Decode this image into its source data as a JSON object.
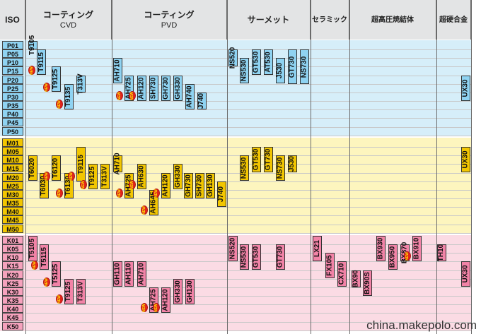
{
  "header": {
    "iso": "ISO",
    "columns": [
      {
        "key": "cvd",
        "line1": "コーティング",
        "line2": "CVD"
      },
      {
        "key": "pvd",
        "line1": "コーティング",
        "line2": "PVD"
      },
      {
        "key": "cermet",
        "line1": "サーメット",
        "line2": ""
      },
      {
        "key": "ceramic",
        "line1": "セラミック",
        "line2": ""
      },
      {
        "key": "cbn",
        "line1": "超高圧焼結体",
        "line2": ""
      },
      {
        "key": "carbide",
        "line1": "超硬合金",
        "line2": ""
      }
    ]
  },
  "bands": [
    {
      "name": "P",
      "color": "#d6eef9",
      "labelColor": "#8fd3f2",
      "rows": [
        "P01",
        "P05",
        "P10",
        "P15",
        "P20",
        "P25",
        "P30",
        "P35",
        "P40",
        "P45",
        "P50"
      ]
    },
    {
      "name": "M",
      "color": "#fdf5be",
      "labelColor": "#f2c600",
      "rows": [
        "M01",
        "M05",
        "M10",
        "M15",
        "M20",
        "M25",
        "M30",
        "M35",
        "M40",
        "M45",
        "M50"
      ]
    },
    {
      "name": "K",
      "color": "#fbdbe4",
      "labelColor": "#f6a2bd",
      "rows": [
        "K01",
        "K05",
        "K10",
        "K15",
        "K20",
        "K25",
        "K30",
        "K35",
        "K40",
        "K45",
        "K50"
      ]
    }
  ],
  "grade_colors": {
    "P": "#8fd3f2",
    "M": "#f2c600",
    "K": "#f283a7"
  },
  "new_badge": "NEW",
  "grades": [
    {
      "band": "P",
      "name": "T9105",
      "start": 0,
      "end": 1,
      "new": false
    },
    {
      "band": "P",
      "name": "T9115",
      "start": 1,
      "end": 4,
      "new": true
    },
    {
      "band": "P",
      "name": "T9125",
      "start": 3,
      "end": 6,
      "new": true
    },
    {
      "band": "P",
      "name": "T9135",
      "start": 5,
      "end": 8,
      "new": true
    },
    {
      "band": "P",
      "name": "T313V",
      "start": 4,
      "end": 6,
      "new": false
    },
    {
      "band": "P",
      "name": "AH710",
      "start": 2,
      "end": 5,
      "new": false
    },
    {
      "band": "P",
      "name": "AH725",
      "start": 4,
      "end": 7,
      "new": true
    },
    {
      "band": "P",
      "name": "AH120",
      "start": 4,
      "end": 7,
      "new": true
    },
    {
      "band": "P",
      "name": "SH730",
      "start": 4,
      "end": 7,
      "new": false
    },
    {
      "band": "P",
      "name": "GH730",
      "start": 4,
      "end": 7,
      "new": false
    },
    {
      "band": "P",
      "name": "GH330",
      "start": 4,
      "end": 7,
      "new": false
    },
    {
      "band": "P",
      "name": "AH740",
      "start": 5,
      "end": 8,
      "new": false
    },
    {
      "band": "P",
      "name": "J740",
      "start": 6,
      "end": 8,
      "new": false
    },
    {
      "band": "P",
      "name": "NS520",
      "start": 1,
      "end": 3,
      "new": false
    },
    {
      "band": "P",
      "name": "NS530",
      "start": 2,
      "end": 5,
      "new": false
    },
    {
      "band": "P",
      "name": "GT530",
      "start": 1,
      "end": 4,
      "new": false
    },
    {
      "band": "P",
      "name": "AT530",
      "start": 1,
      "end": 4,
      "new": false
    },
    {
      "band": "P",
      "name": "J530",
      "start": 2,
      "end": 5,
      "new": false
    },
    {
      "band": "P",
      "name": "GT730",
      "start": 1,
      "end": 5,
      "new": false
    },
    {
      "band": "P",
      "name": "NS730",
      "start": 1,
      "end": 5,
      "new": false
    },
    {
      "band": "P",
      "name": "UX30",
      "start": 4,
      "end": 7,
      "new": false
    },
    {
      "band": "M",
      "name": "T6020",
      "start": 2,
      "end": 5,
      "new": false
    },
    {
      "band": "M",
      "name": "T6030",
      "start": 4,
      "end": 7,
      "new": false
    },
    {
      "band": "M",
      "name": "T6120",
      "start": 2,
      "end": 5,
      "new": true
    },
    {
      "band": "M",
      "name": "T6130",
      "start": 4,
      "end": 7,
      "new": true
    },
    {
      "band": "M",
      "name": "T9115",
      "start": 1,
      "end": 5,
      "new": true
    },
    {
      "band": "M",
      "name": "T9125",
      "start": 3,
      "end": 6,
      "new": true
    },
    {
      "band": "M",
      "name": "T313V",
      "start": 3,
      "end": 6,
      "new": false
    },
    {
      "band": "M",
      "name": "AH710",
      "start": 2,
      "end": 4,
      "new": false
    },
    {
      "band": "M",
      "name": "AH725",
      "start": 4,
      "end": 7,
      "new": true
    },
    {
      "band": "M",
      "name": "AH630",
      "start": 3,
      "end": 6,
      "new": true
    },
    {
      "band": "M",
      "name": "AH645",
      "start": 6,
      "end": 9,
      "new": true
    },
    {
      "band": "M",
      "name": "AH120",
      "start": 4,
      "end": 7,
      "new": true
    },
    {
      "band": "M",
      "name": "GH330",
      "start": 3,
      "end": 6,
      "new": false
    },
    {
      "band": "M",
      "name": "GH730",
      "start": 4,
      "end": 7,
      "new": false
    },
    {
      "band": "M",
      "name": "SH730",
      "start": 4,
      "end": 7,
      "new": false
    },
    {
      "band": "M",
      "name": "GH130",
      "start": 4,
      "end": 7,
      "new": false
    },
    {
      "band": "M",
      "name": "J740",
      "start": 5,
      "end": 8,
      "new": false
    },
    {
      "band": "M",
      "name": "NS530",
      "start": 2,
      "end": 5,
      "new": false
    },
    {
      "band": "M",
      "name": "GT530",
      "start": 1,
      "end": 4,
      "new": false
    },
    {
      "band": "M",
      "name": "GT730",
      "start": 1,
      "end": 4,
      "new": false
    },
    {
      "band": "M",
      "name": "NS730",
      "start": 2,
      "end": 5,
      "new": false
    },
    {
      "band": "M",
      "name": "J530",
      "start": 2,
      "end": 4,
      "new": false
    },
    {
      "band": "M",
      "name": "UX30",
      "start": 1,
      "end": 4,
      "new": false
    },
    {
      "band": "K",
      "name": "T5105",
      "start": 0,
      "end": 3,
      "new": false
    },
    {
      "band": "K",
      "name": "T5115",
      "start": 1,
      "end": 4,
      "new": true
    },
    {
      "band": "K",
      "name": "T5125",
      "start": 3,
      "end": 6,
      "new": true
    },
    {
      "band": "K",
      "name": "T9125",
      "start": 5,
      "end": 8,
      "new": true
    },
    {
      "band": "K",
      "name": "T313V",
      "start": 5,
      "end": 8,
      "new": false
    },
    {
      "band": "K",
      "name": "GH110",
      "start": 3,
      "end": 6,
      "new": false
    },
    {
      "band": "K",
      "name": "AH110",
      "start": 3,
      "end": 6,
      "new": false
    },
    {
      "band": "K",
      "name": "AH710",
      "start": 3,
      "end": 6,
      "new": false
    },
    {
      "band": "K",
      "name": "AH725",
      "start": 6,
      "end": 9,
      "new": true
    },
    {
      "band": "K",
      "name": "AH120",
      "start": 6,
      "end": 9,
      "new": true
    },
    {
      "band": "K",
      "name": "GH330",
      "start": 5,
      "end": 8,
      "new": false
    },
    {
      "band": "K",
      "name": "GH130",
      "start": 5,
      "end": 8,
      "new": false
    },
    {
      "band": "K",
      "name": "NS520",
      "start": 0,
      "end": 3,
      "new": false
    },
    {
      "band": "K",
      "name": "NS530",
      "start": 1,
      "end": 4,
      "new": false
    },
    {
      "band": "K",
      "name": "GT530",
      "start": 1,
      "end": 4,
      "new": false
    },
    {
      "band": "K",
      "name": "GT730",
      "start": 1,
      "end": 4,
      "new": false
    },
    {
      "band": "K",
      "name": "LX21",
      "start": 0,
      "end": 3,
      "new": false
    },
    {
      "band": "K",
      "name": "FX105",
      "start": 2,
      "end": 5,
      "new": false
    },
    {
      "band": "K",
      "name": "CX710",
      "start": 3,
      "end": 6,
      "new": false
    },
    {
      "band": "K",
      "name": "BX90",
      "start": 4,
      "end": 6,
      "new": false
    },
    {
      "band": "K",
      "name": "BX90S",
      "start": 4,
      "end": 7,
      "new": false
    },
    {
      "band": "K",
      "name": "BX930",
      "start": 0,
      "end": 3,
      "new": false
    },
    {
      "band": "K",
      "name": "BX950",
      "start": 1,
      "end": 4,
      "new": false
    },
    {
      "band": "K",
      "name": "BX870",
      "start": 1,
      "end": 3,
      "new": false
    },
    {
      "band": "K",
      "name": "BX910",
      "start": 0,
      "end": 3,
      "new": true
    },
    {
      "band": "K",
      "name": "TH10",
      "start": 1,
      "end": 3,
      "new": false
    },
    {
      "band": "K",
      "name": "UX30",
      "start": 3,
      "end": 6,
      "new": false
    }
  ],
  "watermark": "china.makepolo.com"
}
